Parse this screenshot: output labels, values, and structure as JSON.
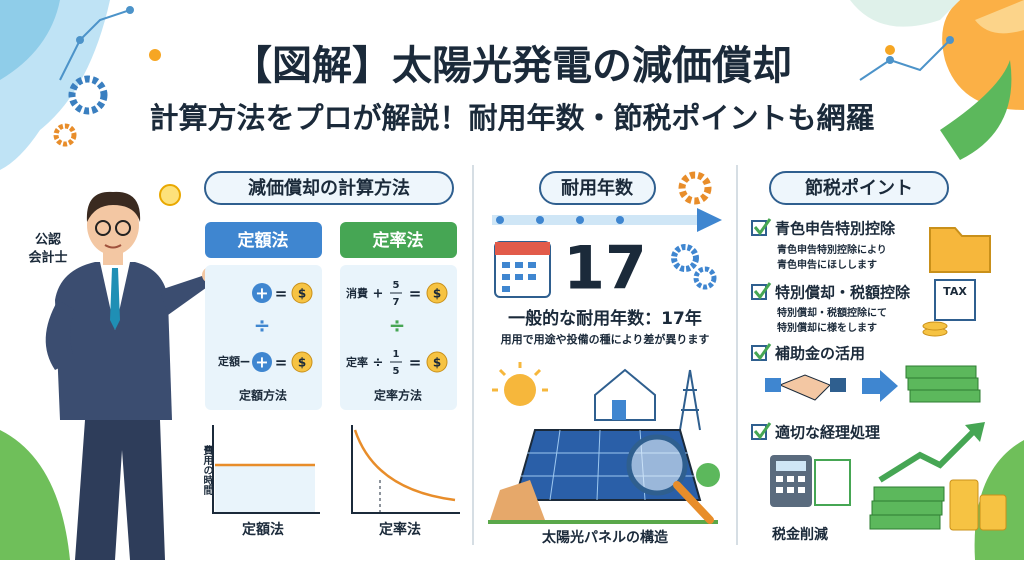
{
  "header": {
    "title": "【図解】太陽光発電の減価償却",
    "subtitle": "計算方法をプロが解説！耐用年数・節税ポイントも網羅"
  },
  "presenter": {
    "label_lines": [
      "公認",
      "会計士"
    ]
  },
  "symbols": {
    "plus": "+",
    "equals": "=",
    "divide": "÷",
    "minus": "−",
    "dollar": "$"
  },
  "calculation": {
    "heading": "減価償却の計算方法",
    "graph_axis_label": "費用の時間",
    "methods": [
      {
        "name": "定額法",
        "formula_label": "定額",
        "caption": "定額方法",
        "graph_label": "定額法"
      },
      {
        "name": "定率法",
        "formula_top": "消費",
        "fraction_top": [
          "5",
          "7"
        ],
        "formula_label": "定率",
        "fraction_bottom": [
          "1",
          "5"
        ],
        "caption": "定率方法",
        "graph_label": "定率法"
      }
    ]
  },
  "useful_life": {
    "heading": "耐用年数",
    "number": 17,
    "summary": "一般的な耐用年数：17年",
    "note": "用用で用途や投備の種により差が異ります",
    "caption": "太陽光パネルの構造"
  },
  "tax_saving": {
    "heading": "節税ポイント",
    "items": [
      {
        "title": "青色申告特別控除",
        "lines": [
          "青色申告特別控除により",
          "青色申告にほしします"
        ]
      },
      {
        "title": "特別償却・税額控除",
        "lines": [
          "特別償却・税額控除にて",
          "特別償却に様をします"
        ]
      },
      {
        "title": "補助金の活用"
      },
      {
        "title": "適切な経理処理"
      }
    ],
    "tax_icon": "TAX",
    "result": "税金削減"
  }
}
